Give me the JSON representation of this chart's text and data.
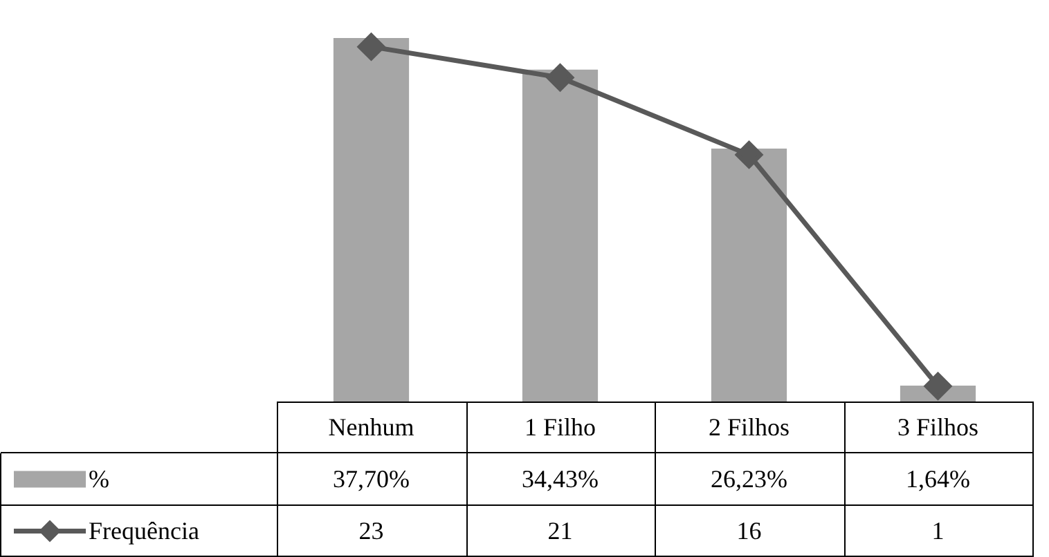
{
  "chart_data": {
    "type": "bar",
    "categories": [
      "Nenhum",
      "1 Filho",
      "2 Filhos",
      "3 Filhos"
    ],
    "series": [
      {
        "name": "%",
        "color": "#a6a6a6",
        "values": [
          37.7,
          34.43,
          26.23,
          1.64
        ],
        "value_labels": [
          "37,70%",
          "34,43%",
          "26,23%",
          "1,64%"
        ]
      },
      {
        "name": "Frequência",
        "type": "line",
        "axis": "y2",
        "color": "#595959",
        "marker": "diamond",
        "values": [
          23,
          21,
          16,
          1
        ],
        "value_labels": [
          "23",
          "21",
          "16",
          "1"
        ]
      }
    ],
    "legend": "bottom left"
  }
}
